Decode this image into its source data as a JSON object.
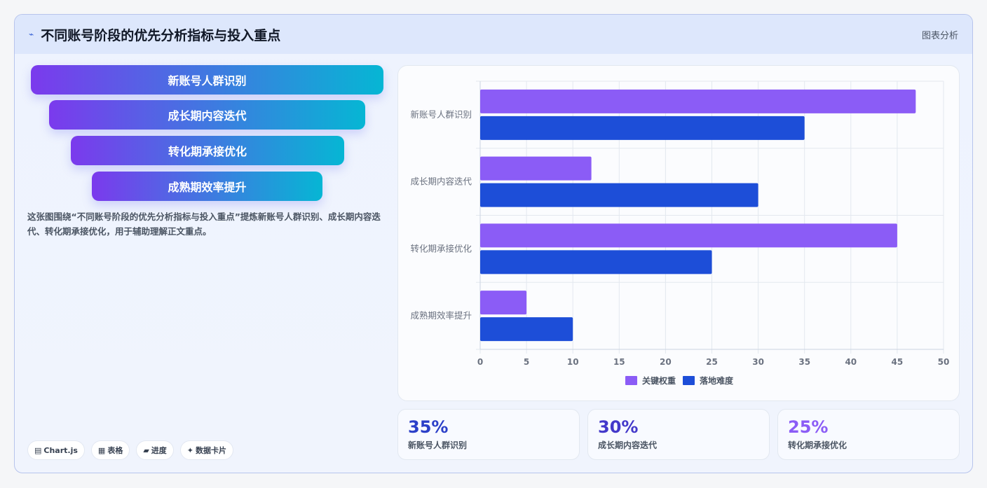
{
  "header": {
    "icon": "chart-line-icon",
    "title": "不同账号阶段的优先分析指标与投入重点",
    "tag": "图表分析"
  },
  "funnel": {
    "items": [
      "新账号人群识别",
      "成长期内容迭代",
      "转化期承接优化",
      "成熟期效率提升"
    ]
  },
  "description": "这张图围绕“不同账号阶段的优先分析指标与投入重点”提炼新账号人群识别、成长期内容迭代、转化期承接优化，用于辅助理解正文重点。",
  "pills": [
    {
      "icon": "chart-icon",
      "label": "Chart.js"
    },
    {
      "icon": "table-icon",
      "label": "表格"
    },
    {
      "icon": "progress-icon",
      "label": "进度"
    },
    {
      "icon": "sparkle-icon",
      "label": "数据卡片"
    }
  ],
  "stats": [
    {
      "value": "35%",
      "label": "新账号人群识别",
      "color": "#2b3fc8"
    },
    {
      "value": "30%",
      "label": "成长期内容迭代",
      "color": "#4338ca"
    },
    {
      "value": "25%",
      "label": "转化期承接优化",
      "color": "#8b5cf6"
    }
  ],
  "chart_data": {
    "type": "bar",
    "orientation": "horizontal",
    "categories": [
      "新账号人群识别",
      "成长期内容迭代",
      "转化期承接优化",
      "成熟期效率提升"
    ],
    "series": [
      {
        "name": "关键权重",
        "values": [
          47,
          12,
          45,
          5
        ],
        "color": "#8b5cf6"
      },
      {
        "name": "落地难度",
        "values": [
          35,
          30,
          25,
          10
        ],
        "color": "#1d4ed8"
      }
    ],
    "xlim": [
      0,
      50
    ],
    "xticks": [
      0,
      5,
      10,
      15,
      20,
      25,
      30,
      35,
      40,
      45,
      50
    ],
    "grid": true,
    "legend": "bottom"
  }
}
